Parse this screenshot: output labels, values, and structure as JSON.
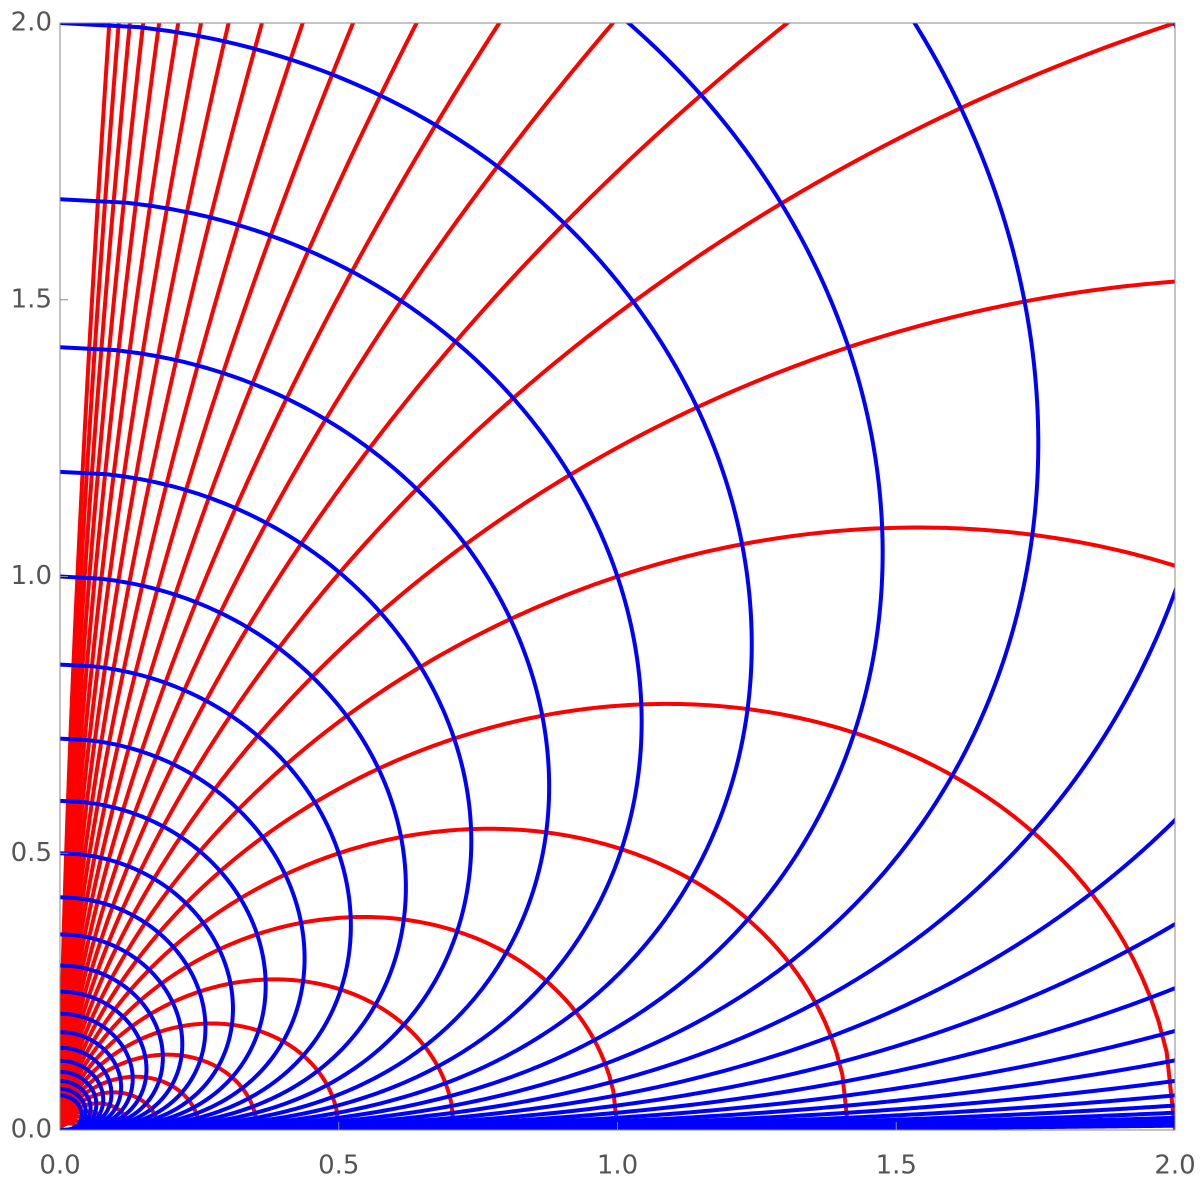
{
  "chart_data": {
    "type": "contour",
    "xlim": [
      0,
      2
    ],
    "ylim": [
      0,
      2
    ],
    "xticks": [
      {
        "value": 0,
        "label": "0.0"
      },
      0.5,
      {
        "value": 1,
        "label": "1.0"
      },
      1.5,
      {
        "value": 2,
        "label": "2.0"
      }
    ],
    "yticks": [
      {
        "value": 0,
        "label": "0.0"
      },
      0.5,
      {
        "value": 1,
        "label": "1.0"
      },
      1.5,
      {
        "value": 2,
        "label": "2.0"
      }
    ],
    "series": [
      {
        "color": "#ff0000",
        "family": "cos2",
        "levels": [
          0.03125,
          0.04419,
          0.0625,
          0.08839,
          0.125,
          0.1768,
          0.25,
          0.3536,
          0.5,
          0.7071,
          1,
          1.414,
          2,
          2.828,
          4,
          5.657,
          8,
          11.31,
          16,
          22.63,
          32,
          45.25,
          64,
          90.51,
          128,
          181.0,
          256,
          362.0,
          512,
          724.1,
          1024
        ]
      },
      {
        "color": "#0000ff",
        "family": "sqrt-sin",
        "levels": [
          0.003906,
          0.005524,
          0.007813,
          0.01105,
          0.01563,
          0.0221,
          0.03125,
          0.04419,
          0.0625,
          0.08839,
          0.125,
          0.1768,
          0.25,
          0.3536,
          0.5,
          0.7071,
          1,
          1.414,
          2,
          2.828,
          4,
          5.657,
          8,
          11.31,
          16,
          22.63,
          32,
          45.25,
          64,
          90.51,
          128,
          181.0,
          256,
          362.0,
          512,
          724.1,
          1024
        ]
      }
    ]
  }
}
